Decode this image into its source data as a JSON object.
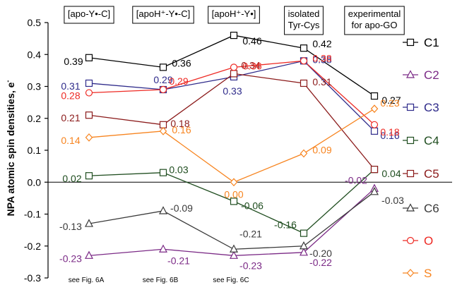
{
  "chart_data": {
    "type": "line",
    "ylabel": "NPA atomic spin densities, e⁻",
    "ylabel_main": "NPA atomic spin densities, e",
    "ylabel_sup": "-",
    "ylim": [
      -0.3,
      0.5
    ],
    "yticks": [
      -0.3,
      -0.2,
      -0.1,
      0.0,
      0.1,
      0.2,
      0.3,
      0.4,
      0.5
    ],
    "ytick_labels": [
      "-0.3",
      "-0.2",
      "-0.1",
      "0.0",
      "0.1",
      "0.2",
      "0.3",
      "0.4",
      "0.5"
    ],
    "categories": [
      {
        "lines": [
          "[apo-Y•-C]"
        ],
        "boxed": true,
        "note": "see Fig. 6A"
      },
      {
        "lines": [
          "[apoH⁺-Y•-C]"
        ],
        "boxed": true,
        "note": "see Fig. 6B"
      },
      {
        "lines": [
          "[apoH⁺-Y•]"
        ],
        "boxed": true,
        "note": "see Fig. 6C"
      },
      {
        "lines": [
          "isolated",
          "Tyr-Cys"
        ],
        "boxed": true,
        "note": ""
      },
      {
        "lines": [
          "experimental",
          "for apo-GO"
        ],
        "boxed": true,
        "note": ""
      }
    ],
    "zero_line": true,
    "series": [
      {
        "name": "C1",
        "color": "#000000",
        "marker": "square",
        "values": [
          0.39,
          0.36,
          0.46,
          0.42,
          0.27
        ]
      },
      {
        "name": "C2",
        "color": "#7b2a86",
        "marker": "triangle",
        "values": [
          -0.23,
          -0.21,
          -0.23,
          -0.22,
          -0.02
        ]
      },
      {
        "name": "C3",
        "color": "#2e2a8a",
        "marker": "square",
        "values": [
          0.31,
          0.29,
          0.33,
          0.38,
          0.16
        ]
      },
      {
        "name": "C4",
        "color": "#1f4d1f",
        "marker": "square",
        "values": [
          0.02,
          0.03,
          -0.06,
          -0.16,
          0.04
        ]
      },
      {
        "name": "C5",
        "color": "#8b1a1a",
        "marker": "square",
        "values": [
          0.21,
          0.18,
          0.34,
          0.31,
          0.04
        ]
      },
      {
        "name": "C6",
        "color": "#3a3a3a",
        "marker": "triangle",
        "values": [
          -0.13,
          -0.09,
          -0.21,
          -0.2,
          -0.03
        ]
      },
      {
        "name": "O",
        "color": "#ee2a24",
        "marker": "circle",
        "values": [
          0.28,
          0.29,
          0.36,
          0.38,
          0.18
        ]
      },
      {
        "name": "S",
        "color": "#f7841f",
        "marker": "diamond",
        "values": [
          0.14,
          0.16,
          0.0,
          0.09,
          0.23
        ]
      }
    ],
    "data_labels": [
      {
        "series": 0,
        "point": 0,
        "text": "0.39"
      },
      {
        "series": 0,
        "point": 1,
        "text": "0.36"
      },
      {
        "series": 0,
        "point": 2,
        "text": "0.46"
      },
      {
        "series": 0,
        "point": 3,
        "text": "0.42"
      },
      {
        "series": 0,
        "point": 4,
        "text": "0.27"
      },
      {
        "series": 1,
        "point": 0,
        "text": "-0.23"
      },
      {
        "series": 1,
        "point": 1,
        "text": "-0.21"
      },
      {
        "series": 1,
        "point": 2,
        "text": "-0.23"
      },
      {
        "series": 1,
        "point": 3,
        "text": "-0.22"
      },
      {
        "series": 1,
        "point": 4,
        "text": "-0.02"
      },
      {
        "series": 2,
        "point": 0,
        "text": "0.31"
      },
      {
        "series": 2,
        "point": 1,
        "text": "0.29"
      },
      {
        "series": 2,
        "point": 2,
        "text": "0.33"
      },
      {
        "series": 2,
        "point": 3,
        "text": "0.38"
      },
      {
        "series": 2,
        "point": 4,
        "text": "0.16"
      },
      {
        "series": 3,
        "point": 0,
        "text": "0.02"
      },
      {
        "series": 3,
        "point": 1,
        "text": "0.03"
      },
      {
        "series": 3,
        "point": 2,
        "text": "-0.06"
      },
      {
        "series": 3,
        "point": 3,
        "text": "-0.16"
      },
      {
        "series": 3,
        "point": 4,
        "text": "0.04"
      },
      {
        "series": 4,
        "point": 0,
        "text": "0.21"
      },
      {
        "series": 4,
        "point": 1,
        "text": "0.18"
      },
      {
        "series": 4,
        "point": 2,
        "text": "0.34"
      },
      {
        "series": 4,
        "point": 3,
        "text": "0.31"
      },
      {
        "series": 5,
        "point": 0,
        "text": "-0.13"
      },
      {
        "series": 5,
        "point": 1,
        "text": "-0.09"
      },
      {
        "series": 5,
        "point": 2,
        "text": "-0.21"
      },
      {
        "series": 5,
        "point": 3,
        "text": "-0.20"
      },
      {
        "series": 5,
        "point": 4,
        "text": "-0.03"
      },
      {
        "series": 6,
        "point": 0,
        "text": "0.28"
      },
      {
        "series": 6,
        "point": 1,
        "text": "0.29"
      },
      {
        "series": 6,
        "point": 2,
        "text": "0.36"
      },
      {
        "series": 6,
        "point": 3,
        "text": "0.38"
      },
      {
        "series": 6,
        "point": 4,
        "text": "0.18"
      },
      {
        "series": 7,
        "point": 0,
        "text": "0.14"
      },
      {
        "series": 7,
        "point": 1,
        "text": "0.16"
      },
      {
        "series": 7,
        "point": 2,
        "text": "0.00"
      },
      {
        "series": 7,
        "point": 3,
        "text": "0.09"
      },
      {
        "series": 7,
        "point": 4,
        "text": "0.23"
      }
    ],
    "legend_position": "right",
    "grid": false
  }
}
